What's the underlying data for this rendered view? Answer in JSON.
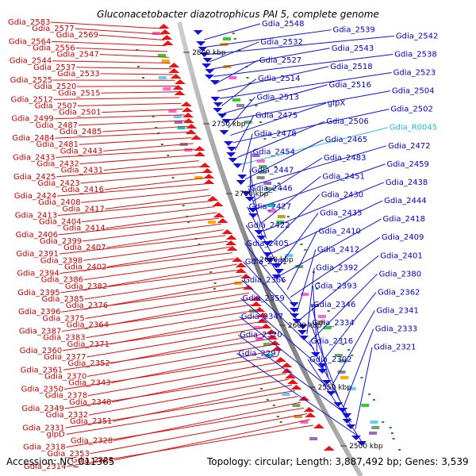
{
  "title": "Gluconacetobacter diazotrophicus PAI 5, complete genome",
  "accession": "Accession: NC_011365",
  "summary": "Topology: circular; Length: 3,887,492 bp; Genes: 3,539",
  "colors": {
    "forward": "#ee1111",
    "reverse": "#1111dd",
    "label_left": "#cc0000",
    "label_right": "#0000cc",
    "rna": "#22bbdd",
    "backbone": "#888888",
    "tick": "#228822"
  },
  "ticks": [
    "2800 kbp",
    "2750 kbp",
    "2700 kbp",
    "2650 kbp",
    "2600 kbp",
    "2550 kbp",
    "2500 kbp"
  ],
  "left_labels": [
    "Gdia_2583",
    "Gdia_2577",
    "Gdia_2569",
    "Gdia_2564",
    "Gdia_2556",
    "Gdia_2547",
    "Gdia_2544",
    "Gdia_2537",
    "Gdia_2533",
    "Gdia_2525",
    "Gdia_2520",
    "Gdia_2515",
    "Gdia_2512",
    "Gdia_2507",
    "Gdia_2501",
    "Gdia_2499",
    "Gdia_2487",
    "Gdia_2485",
    "Gdia_2484",
    "Gdia_2481",
    "Gdia_2443",
    "Gdia_2433",
    "Gdia_2432",
    "Gdia_2431",
    "Gdia_2425",
    "Gdia_2423",
    "Gdia_2416",
    "Gdia_2424",
    "Gdia_2408",
    "Gdia_2417",
    "Gdia_2413",
    "Gdia_2404",
    "Gdia_2414",
    "Gdia_2406",
    "Gdia_2399",
    "Gdia_2407",
    "Gdia_2391",
    "Gdia_2398",
    "Gdia_2402",
    "Gdia_2394",
    "Gdia_2386",
    "Gdia_2382",
    "Gdia_2395",
    "Gdia_2385",
    "Gdia_2376",
    "Gdia_2396",
    "Gdia_2375",
    "Gdia_2364",
    "Gdia_2387",
    "Gdia_2383",
    "Gdia_2371",
    "Gdia_2360",
    "Gdia_2377",
    "Gdia_2352",
    "Gdia_2361",
    "Gdia_2370",
    "Gdia_2343",
    "Gdia_2350",
    "Gdia_2378",
    "Gdia_2348",
    "Gdia_2349",
    "Gdia_2332",
    "Gdia_2351",
    "Gdia_2331",
    "glpD",
    "Gdia_2328",
    "Gdia_2318",
    "Gdia_2353",
    "Gdia_2323",
    "Gdia_2314"
  ],
  "right_labels": [
    "Gdia_2548",
    "Gdia_2539",
    "Gdia_2542",
    "Gdia_2532",
    "Gdia_2543",
    "Gdia_2538",
    "Gdia_2527",
    "Gdia_2518",
    "Gdia_2523",
    "Gdia_2514",
    "Gdia_2516",
    "Gdia_2504",
    "Gdia_2513",
    "glpX",
    "Gdia_2502",
    "Gdia_2475",
    "Gdia_2506",
    "Gdia_R0045",
    "Gdia_2478",
    "Gdia_2465",
    "Gdia_2472",
    "Gdia_2454",
    "Gdia_2483",
    "Gdia_2459",
    "Gdia_2447",
    "Gdia_2451",
    "Gdia_2438",
    "Gdia_2446",
    "Gdia_2430",
    "Gdia_2444",
    "Gdia_2427",
    "Gdia_2435",
    "Gdia_2418",
    "Gdia_2422",
    "Gdia_2410",
    "Gdia_2409",
    "Gdia_2405",
    "Gdia_2412",
    "Gdia_2401",
    "Gdia_2381",
    "Gdia_2392",
    "Gdia_2380",
    "Gdia_2366",
    "Gdia_2393",
    "Gdia_2362",
    "Gdia_2359",
    "Gdia_2346",
    "Gdia_2341",
    "Gdia_2347",
    "Gdia_2334",
    "Gdia_2333",
    "Gdia_2320",
    "Gdia_2316",
    "Gdia_2321",
    "Gdia_2297",
    "Gdia_2302"
  ]
}
